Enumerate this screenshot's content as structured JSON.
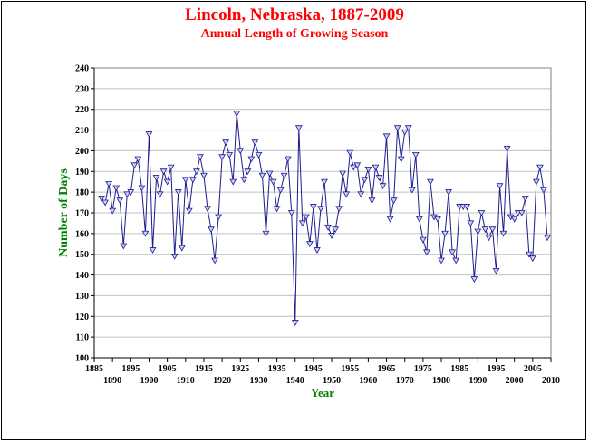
{
  "title": "Lincoln, Nebraska, 1887-2009",
  "subtitle": "Annual Length of Growing Season",
  "colors": {
    "title": "#ff0000",
    "axis_title": "#008000",
    "series": "#1c1c8c",
    "marker_fill": "#c8d0ff",
    "plot_bg": "#ffffff",
    "grid": "#c0c0c0"
  },
  "chart_data": {
    "type": "line",
    "title": "Lincoln, Nebraska, 1887-2009",
    "subtitle": "Annual Length of Growing Season",
    "xlabel": "Year",
    "ylabel": "Number of Days",
    "xlim": [
      1885,
      2010
    ],
    "ylim": [
      100,
      240
    ],
    "grid": "horizontal",
    "x_ticks_upper": [
      1885,
      1895,
      1905,
      1915,
      1925,
      1935,
      1945,
      1955,
      1965,
      1975,
      1985,
      1995,
      2005
    ],
    "x_ticks_lower": [
      1890,
      1900,
      1910,
      1920,
      1930,
      1940,
      1950,
      1960,
      1970,
      1980,
      1990,
      2000,
      2010
    ],
    "y_ticks": [
      100,
      110,
      120,
      130,
      140,
      150,
      160,
      170,
      180,
      190,
      200,
      210,
      220,
      230,
      240
    ],
    "marker": "triangle-down",
    "x_start": 1887,
    "values": [
      177,
      175,
      184,
      171,
      182,
      176,
      154,
      179,
      180,
      193,
      196,
      182,
      160,
      208,
      152,
      187,
      179,
      190,
      185,
      192,
      149,
      180,
      153,
      186,
      171,
      186,
      190,
      197,
      188,
      172,
      162,
      147,
      168,
      197,
      204,
      198,
      185,
      218,
      200,
      186,
      190,
      196,
      204,
      198,
      188,
      160,
      189,
      185,
      172,
      181,
      188,
      196,
      170,
      117,
      211,
      165,
      168,
      155,
      173,
      152,
      172,
      185,
      163,
      159,
      162,
      172,
      189,
      179,
      199,
      192,
      193,
      179,
      186,
      191,
      176,
      192,
      187,
      183,
      207,
      167,
      176,
      211,
      196,
      209,
      211,
      181,
      198,
      167,
      157,
      151,
      185,
      168,
      167,
      147,
      160,
      180,
      151,
      147,
      173,
      173,
      173,
      165,
      138,
      161,
      170,
      162,
      158,
      162,
      142,
      183,
      160,
      201,
      168,
      167,
      170,
      170,
      177,
      150,
      148,
      185,
      192,
      181,
      158
    ]
  }
}
